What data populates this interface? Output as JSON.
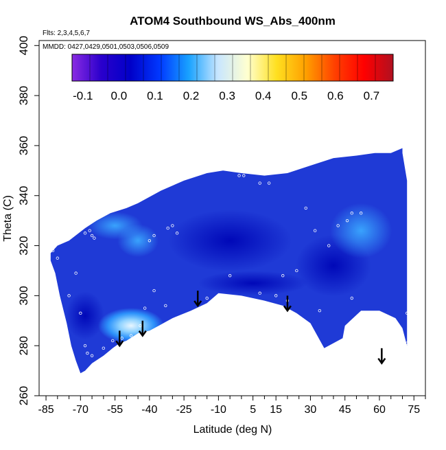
{
  "chart_data": {
    "type": "heatmap",
    "title": "ATOM4 Southbound WS_Abs_400nm",
    "annotations": [
      "Flts: 2,3,4,5,6,7",
      "MMDD: 0427,0429,0501,0503,0506,0509"
    ],
    "xlabel": "Latitude (deg N)",
    "ylabel": "Theta (C)",
    "xlim": [
      -88,
      80
    ],
    "ylim": [
      260,
      402
    ],
    "x_ticks": [
      -85,
      -70,
      -55,
      -40,
      -25,
      -10,
      5,
      15,
      30,
      45,
      60,
      75
    ],
    "x_tick_labels": [
      "-85",
      "-70",
      "-55",
      "-40",
      "-25",
      "-10",
      "5",
      "15",
      "30",
      "45",
      "60",
      "75"
    ],
    "y_ticks": [
      260,
      280,
      300,
      320,
      340,
      360,
      380,
      400
    ],
    "y_tick_labels": [
      "260",
      "280",
      "300",
      "320",
      "340",
      "360",
      "380",
      "400"
    ],
    "grid": false,
    "colorbar": {
      "placement": "top-inside",
      "range": [
        -0.13,
        0.76
      ],
      "ticks": [
        -0.1,
        0.0,
        0.1,
        0.2,
        0.3,
        0.4,
        0.5,
        0.6,
        0.7
      ],
      "tick_labels": [
        "-0.1",
        "0.0",
        "0.1",
        "0.2",
        "0.3",
        "0.4",
        "0.5",
        "0.6",
        "0.7"
      ],
      "colors": [
        "#8a2be2",
        "#2a00cc",
        "#0000c8",
        "#0038ff",
        "#19a2ff",
        "#c8e6ff",
        "#ffffd0",
        "#ffe020",
        "#ffa000",
        "#ff4000",
        "#ff0000",
        "#b01020"
      ]
    },
    "field_colors": {
      "background_fill": "#1f3ad6",
      "dark_core": "#0010c8",
      "light_patch": "#2ea8ff",
      "peak": "#cfeaff"
    },
    "sample_points": [
      [
        -82,
        318
      ],
      [
        -80,
        315
      ],
      [
        -75,
        300
      ],
      [
        -72,
        309
      ],
      [
        -68,
        325
      ],
      [
        -66,
        326
      ],
      [
        -65,
        324
      ],
      [
        -64,
        323
      ],
      [
        -70,
        293
      ],
      [
        -68,
        280
      ],
      [
        -67,
        277
      ],
      [
        -65,
        276
      ],
      [
        -60,
        279
      ],
      [
        -56,
        282
      ],
      [
        -52,
        283
      ],
      [
        -48,
        284
      ],
      [
        -44,
        288
      ],
      [
        -42,
        295
      ],
      [
        -38,
        302
      ],
      [
        -33,
        296
      ],
      [
        -40,
        322
      ],
      [
        -38,
        324
      ],
      [
        -32,
        327
      ],
      [
        -30,
        328
      ],
      [
        -28,
        325
      ],
      [
        -15,
        299
      ],
      [
        -5,
        308
      ],
      [
        -1,
        348
      ],
      [
        1,
        348
      ],
      [
        8,
        345
      ],
      [
        12,
        345
      ],
      [
        8,
        301
      ],
      [
        15,
        300
      ],
      [
        18,
        308
      ],
      [
        20,
        298
      ],
      [
        24,
        310
      ],
      [
        28,
        335
      ],
      [
        32,
        326
      ],
      [
        34,
        294
      ],
      [
        38,
        320
      ],
      [
        42,
        328
      ],
      [
        46,
        330
      ],
      [
        48,
        333
      ],
      [
        52,
        333
      ],
      [
        48,
        299
      ],
      [
        50,
        291
      ],
      [
        72,
        293
      ],
      [
        72,
        281
      ]
    ],
    "arrows": [
      {
        "lat": -53,
        "theta_top": 286,
        "theta_bottom": 280
      },
      {
        "lat": -43,
        "theta_top": 290,
        "theta_bottom": 284
      },
      {
        "lat": -19,
        "theta_top": 302,
        "theta_bottom": 296
      },
      {
        "lat": 20,
        "theta_top": 300,
        "theta_bottom": 294
      },
      {
        "lat": 61,
        "theta_top": 279,
        "theta_bottom": 273
      }
    ]
  }
}
